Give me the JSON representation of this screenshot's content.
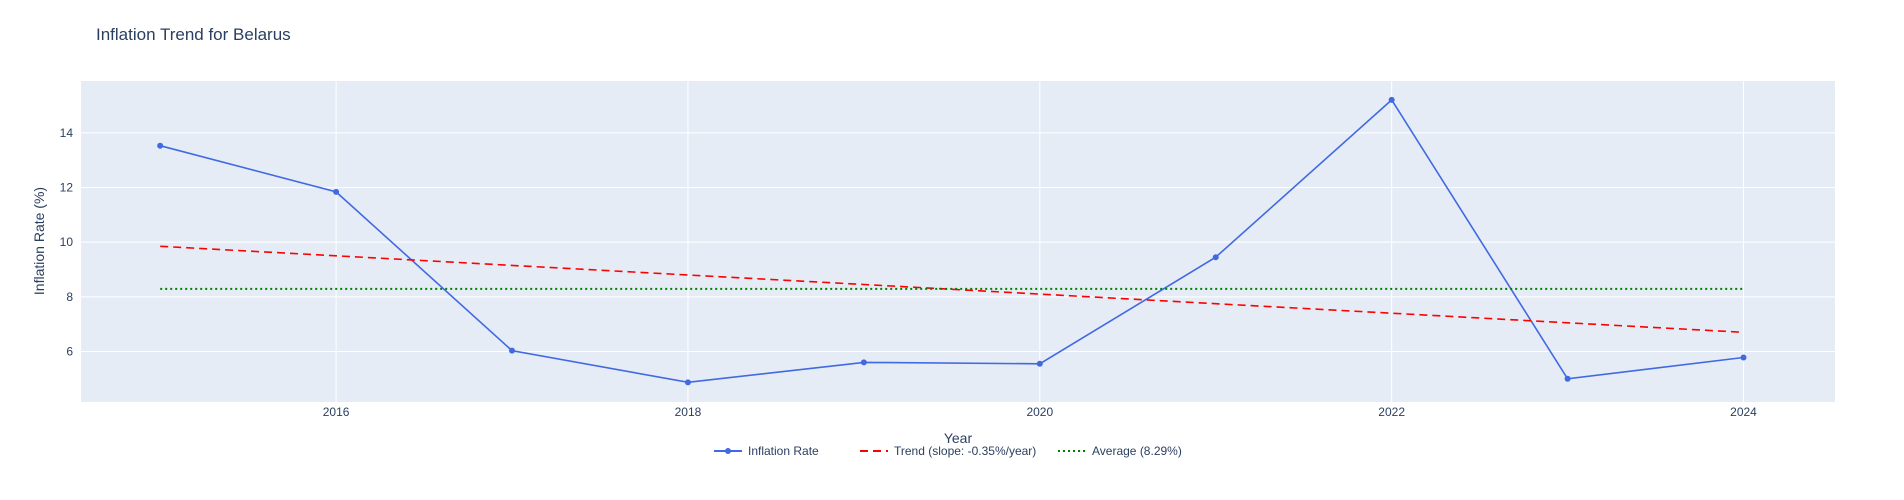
{
  "chart_data": {
    "type": "line",
    "title": "Inflation Trend for Belarus",
    "xlabel": "Year",
    "ylabel": "Inflation Rate (%)",
    "x": [
      2015,
      2016,
      2017,
      2018,
      2019,
      2020,
      2021,
      2022,
      2023,
      2024
    ],
    "xlim": [
      2014.55,
      2024.52
    ],
    "ylim": [
      4.15,
      15.9
    ],
    "xticks": [
      2016,
      2018,
      2020,
      2022,
      2024
    ],
    "yticks": [
      6,
      8,
      10,
      12,
      14
    ],
    "grid": true,
    "legend_position": "bottom-center",
    "series": [
      {
        "name": "Inflation Rate",
        "style": "lines+markers",
        "color": "#4169e1",
        "values": [
          13.53,
          11.84,
          6.03,
          4.87,
          5.6,
          5.55,
          9.45,
          15.21,
          5.0,
          5.78
        ]
      },
      {
        "name": "Trend (slope: -0.35%/year)",
        "style": "dash",
        "color": "#ff0000",
        "values": [
          9.85,
          9.5,
          9.15,
          8.8,
          8.45,
          8.1,
          7.75,
          7.4,
          7.05,
          6.7
        ]
      },
      {
        "name": "Average (8.29%)",
        "style": "dot",
        "color": "#008000",
        "values": [
          8.29,
          8.29,
          8.29,
          8.29,
          8.29,
          8.29,
          8.29,
          8.29,
          8.29,
          8.29
        ]
      }
    ],
    "colors": {
      "plot_bg": "#e5ecf6",
      "grid": "#ffffff",
      "text": "#2a3f5f"
    }
  }
}
